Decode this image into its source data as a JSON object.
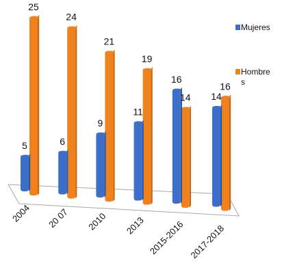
{
  "chart_data": {
    "type": "bar",
    "title": "",
    "xlabel": "",
    "ylabel": "",
    "categories": [
      "2004",
      "20 07",
      "2010",
      "2013",
      "2015-2016",
      "2017-2018"
    ],
    "series": [
      {
        "name": "Mujeres",
        "values": [
          5,
          6,
          9,
          11,
          16,
          14
        ],
        "color": "#3E6FC8"
      },
      {
        "name": "Hombres",
        "values": [
          25,
          24,
          21,
          19,
          14,
          16
        ],
        "color": "#F0821E"
      }
    ],
    "data_labels": {
      "Mujeres": [
        "5",
        "6",
        "9",
        "11",
        "16",
        "14"
      ],
      "Hombres": [
        "25",
        "24",
        "21",
        "19",
        "14",
        "16"
      ]
    },
    "legend": {
      "placement": "right",
      "entries": [
        {
          "label": "Mujeres",
          "color": "#3E6FC8"
        },
        {
          "label_line1": "Hombre",
          "label_line2": "s",
          "color": "#F0821E"
        }
      ]
    },
    "grid": false,
    "ylim": [
      0,
      25
    ],
    "style": "3d-clustered-column",
    "colors": {
      "mujeres_dark": "#2A57A6",
      "hombres_dark": "#C9650F",
      "floor_stroke": "#A8A8A8"
    }
  }
}
